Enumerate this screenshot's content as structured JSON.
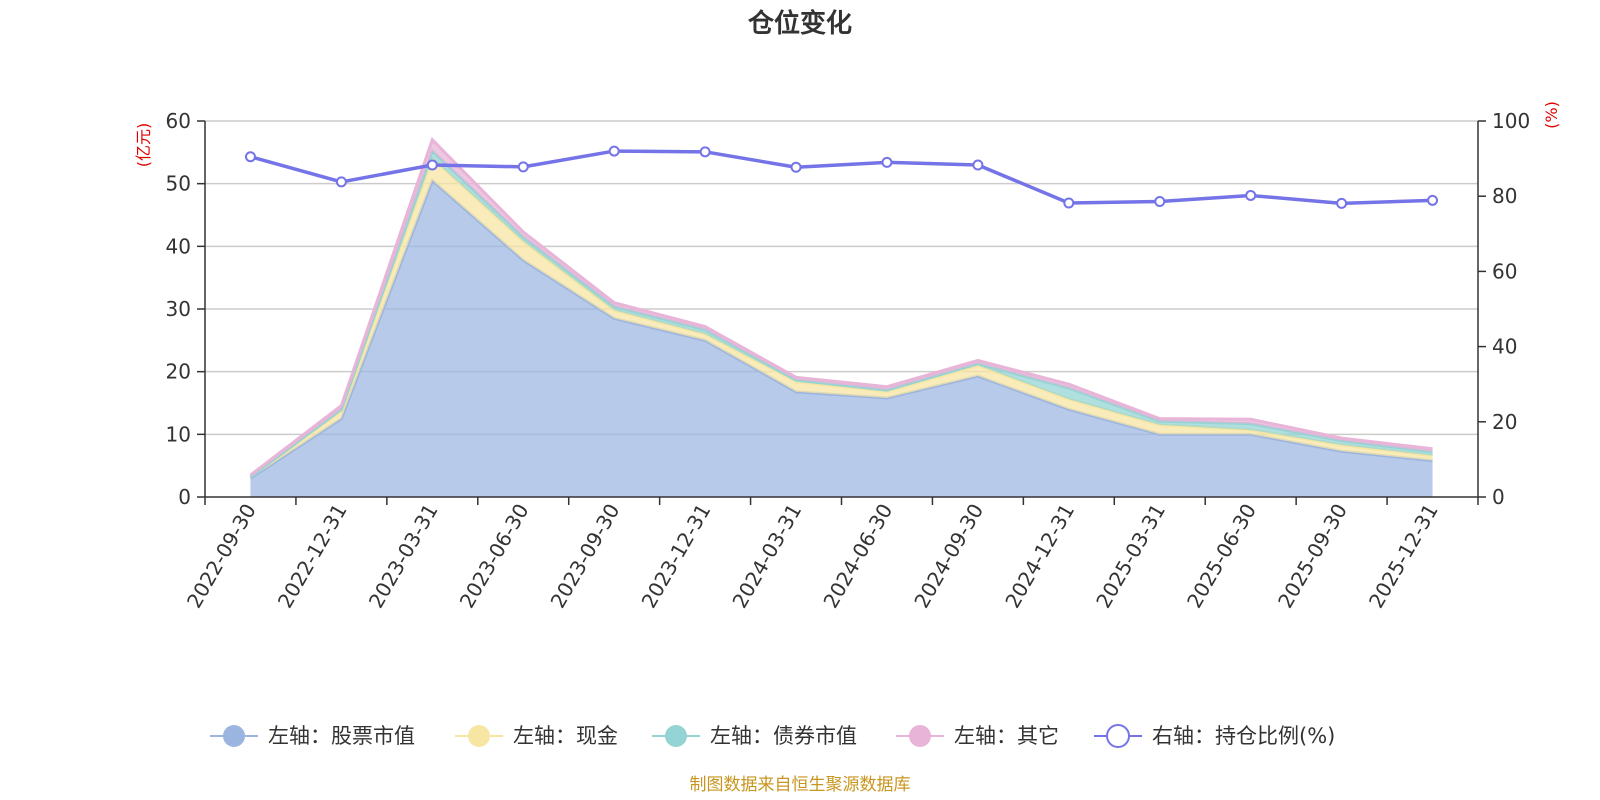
{
  "chart_data": {
    "type": "area",
    "title": "仓位变化",
    "categories": [
      "2022-09-30",
      "2022-12-31",
      "2023-03-31",
      "2023-06-30",
      "2023-09-30",
      "2023-12-31",
      "2024-03-31",
      "2024-06-30",
      "2024-09-30",
      "2024-12-31",
      "2025-03-31",
      "2025-06-30",
      "2025-09-30",
      "2025-12-31"
    ],
    "left_axis": {
      "unit": "(亿元)",
      "ylim": [
        0,
        60
      ],
      "ticks": [
        0,
        10,
        20,
        30,
        40,
        50,
        60
      ]
    },
    "right_axis": {
      "unit": "(%)",
      "ylim": [
        0,
        100
      ],
      "ticks": [
        0,
        20,
        40,
        60,
        80,
        100
      ]
    },
    "stacked_series": [
      {
        "name": "左轴：股票市值",
        "color": "#9bb5e0",
        "values": [
          3.0,
          12.5,
          50.5,
          37.8,
          28.5,
          25.0,
          16.8,
          15.8,
          19.3,
          14.0,
          10.0,
          10.0,
          7.3,
          5.8
        ]
      },
      {
        "name": "左轴：现金",
        "color": "#f7e6a3",
        "values": [
          0.2,
          1.2,
          3.5,
          3.0,
          1.3,
          1.0,
          1.6,
          1.0,
          1.7,
          1.6,
          1.5,
          0.7,
          1.0,
          0.8
        ]
      },
      {
        "name": "左轴：债券市值",
        "color": "#94d4d4",
        "values": [
          0.0,
          0.3,
          1.2,
          0.7,
          0.6,
          0.7,
          0.3,
          0.3,
          0.3,
          1.8,
          0.6,
          1.0,
          0.7,
          0.6
        ]
      },
      {
        "name": "左轴：其它",
        "color": "#e8b4d8",
        "values": [
          0.3,
          0.6,
          1.8,
          0.8,
          0.6,
          0.5,
          0.4,
          0.5,
          0.5,
          0.6,
          0.4,
          0.7,
          0.4,
          0.5
        ]
      }
    ],
    "line_series": {
      "name": "右轴：持仓比例(%)",
      "color": "#7474e8",
      "values": [
        90.5,
        83.8,
        88.3,
        87.8,
        92.0,
        91.8,
        87.7,
        89.0,
        88.3,
        78.2,
        78.6,
        80.2,
        78.1,
        78.9
      ]
    },
    "legend_position": "bottom-center"
  },
  "footer": "制图数据来自恒生聚源数据库"
}
